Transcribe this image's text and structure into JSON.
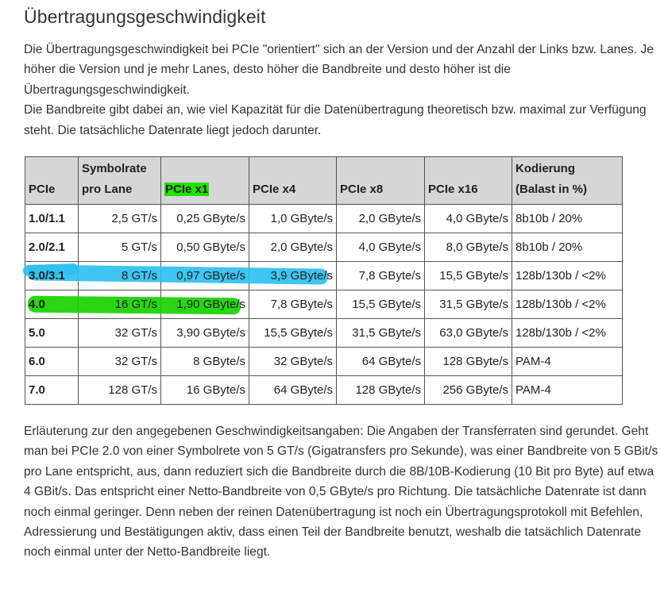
{
  "title": "Übertragungsgeschwindigkeit",
  "intro": [
    "Die Übertragungsgeschwindigkeit bei PCIe \"orientiert\" sich an der Version und der Anzahl der Links bzw. Lanes. Je höher die Version und je mehr Lanes, desto höher die Bandbreite und desto höher ist die Übertragungsgeschwindigkeit.",
    "Die Bandbreite gibt dabei an, wie viel Kapazität für die Datenübertragung theoretisch bzw. maximal zur Verfügung steht. Die tatsächliche Datenrate liegt jedoch darunter."
  ],
  "table": {
    "headers": [
      "PCIe",
      "Symbolrate pro Lane",
      "PCIe x1",
      "PCIe x4",
      "PCIe x8",
      "PCIe x16",
      "Kodierung (Balast in %)"
    ],
    "header_lines": {
      "symbolrate_1": "Symbolrate",
      "symbolrate_2": "pro Lane",
      "kodierung_1": "Kodierung",
      "kodierung_2": "(Balast in %)"
    },
    "rows": [
      [
        "1.0/1.1",
        "2,5 GT/s",
        "0,25 GByte/s",
        "1,0 GByte/s",
        "2,0 GByte/s",
        "4,0 GByte/s",
        "8b10b / 20%"
      ],
      [
        "2.0/2.1",
        "5 GT/s",
        "0,50 GByte/s",
        "2,0 GByte/s",
        "4,0 GByte/s",
        "8,0 GByte/s",
        "8b10b / 20%"
      ],
      [
        "3.0/3.1",
        "8 GT/s",
        "0,97 GByte/s",
        "3,9 GByte/s",
        "7,8 GByte/s",
        "15,5 GByte/s",
        "128b/130b / <2%"
      ],
      [
        "4.0",
        "16 GT/s",
        "1,90 GByte/s",
        "7,8 GByte/s",
        "15,5 GByte/s",
        "31,5 GByte/s",
        "128b/130b / <2%"
      ],
      [
        "5.0",
        "32 GT/s",
        "3,90 GByte/s",
        "15,5 GByte/s",
        "31,5 GByte/s",
        "63,0 GByte/s",
        "128b/130b / <2%"
      ],
      [
        "6.0",
        "32 GT/s",
        "8 GByte/s",
        "32 GByte/s",
        "64 GByte/s",
        "128 GByte/s",
        "PAM-4"
      ],
      [
        "7.0",
        "128 GT/s",
        "16 GByte/s",
        "64 GByte/s",
        "128 GByte/s",
        "256 GByte/s",
        "PAM-4"
      ]
    ],
    "highlight_colors": {
      "header_pcie_x1": "#22e000",
      "row_3_0": "#2ec0f0",
      "row_4_0": "#19d100"
    }
  },
  "explanation": "Erläuterung zur den angegebenen Geschwindigkeitsangaben: Die Angaben der Transferraten sind gerundet. Geht man bei PCIe 2.0 von einer Symbolrete von 5 GT/s (Gigatransfers pro Sekunde), was einer Bandbreite von 5 GBit/s pro Lane entspricht, aus, dann reduziert sich die Bandbreite durch die 8B/10B-Kodierung (10 Bit pro Byte) auf etwa 4 GBit/s. Das entspricht einer Netto-Bandbreite von 0,5 GByte/s pro Richtung. Die tatsächliche Datenrate ist dann noch einmal geringer. Denn neben der reinen Datenübertragung ist noch ein Übertragungsprotokoll mit Befehlen, Adressierung und Bestätigungen aktiv, dass einen Teil der Bandbreite benutzt, weshalb die tatsächlich Datenrate noch einmal unter der Netto-Bandbreite liegt."
}
